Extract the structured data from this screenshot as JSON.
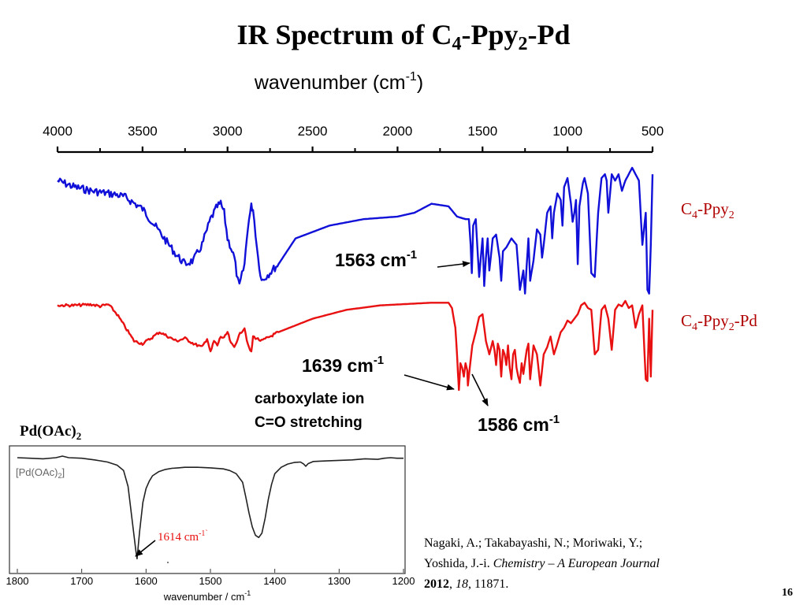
{
  "slide": {
    "title": "IR Spectrum of C",
    "title_sub1": "4",
    "title_mid": "-Ppy",
    "title_sub2": "2",
    "title_end": "-Pd",
    "page_number": "16"
  },
  "citation": {
    "authors": "Nagaki, A.; Takabayashi, N.; Moriwaki, Y.;",
    "authors2": "Yoshida, J.-i.",
    "journal": "Chemistry – A European Journal",
    "year": "2012",
    "volume": "18",
    "pages": "11871."
  },
  "colors": {
    "series1": "#1010d8",
    "series2": "#e81010",
    "label": "#b00000",
    "inset_line": "#222222",
    "inset_peak_label": "#e81010"
  },
  "chart_data": [
    {
      "type": "line",
      "title": "IR Spectrum of C4-Ppy2-Pd",
      "xlabel": "wavenumber (cm",
      "xlabel_sup": "-1",
      "xlabel_end": ")",
      "xlim": [
        4000,
        500
      ],
      "xticks": [
        "4000",
        "3500",
        "3000",
        "2500",
        "2000",
        "1500",
        "1000",
        "500"
      ],
      "series": [
        {
          "name": "C4-Ppy2",
          "name_parts": [
            "C",
            "4",
            "-Ppy",
            "2"
          ],
          "x": [
            4000,
            3900,
            3800,
            3700,
            3650,
            3600,
            3500,
            3400,
            3300,
            3250,
            3200,
            3150,
            3100,
            3060,
            3040,
            3020,
            3000,
            2980,
            2960,
            2940,
            2930,
            2900,
            2880,
            2860,
            2850,
            2820,
            2800,
            2700,
            2600,
            2400,
            2200,
            2000,
            1900,
            1800,
            1700,
            1650,
            1600,
            1580,
            1570,
            1563,
            1555,
            1540,
            1520,
            1500,
            1490,
            1480,
            1470,
            1460,
            1440,
            1420,
            1400,
            1390,
            1380,
            1360,
            1330,
            1300,
            1280,
            1260,
            1250,
            1240,
            1230,
            1220,
            1200,
            1180,
            1160,
            1150,
            1140,
            1120,
            1100,
            1090,
            1080,
            1060,
            1040,
            1030,
            1020,
            1000,
            980,
            970,
            960,
            950,
            940,
            930,
            910,
            900,
            880,
            860,
            840,
            820,
            800,
            780,
            770,
            760,
            750,
            740,
            720,
            700,
            680,
            660,
            640,
            620,
            600,
            580,
            560,
            540,
            530,
            520,
            510,
            500
          ],
          "y": [
            0.1,
            0.15,
            0.18,
            0.2,
            0.21,
            0.23,
            0.32,
            0.5,
            0.68,
            0.75,
            0.72,
            0.6,
            0.4,
            0.3,
            0.28,
            0.35,
            0.55,
            0.62,
            0.7,
            0.88,
            0.92,
            0.75,
            0.45,
            0.3,
            0.32,
            0.7,
            0.88,
            0.75,
            0.55,
            0.45,
            0.4,
            0.38,
            0.35,
            0.28,
            0.3,
            0.38,
            0.4,
            0.4,
            0.6,
            0.82,
            0.45,
            0.4,
            0.85,
            0.55,
            0.92,
            0.7,
            0.55,
            0.8,
            0.55,
            0.52,
            0.7,
            0.88,
            0.65,
            0.62,
            0.55,
            0.6,
            0.95,
            0.8,
            0.98,
            0.75,
            0.55,
            0.88,
            0.72,
            0.48,
            0.52,
            0.7,
            0.6,
            0.35,
            0.3,
            0.55,
            0.35,
            0.2,
            0.25,
            0.45,
            0.15,
            0.08,
            0.28,
            0.42,
            0.35,
            0.25,
            0.75,
            0.3,
            0.12,
            0.08,
            0.2,
            0.82,
            0.85,
            0.35,
            0.08,
            0.05,
            0.1,
            0.35,
            0.2,
            0.05,
            0.1,
            0.05,
            0.18,
            0.1,
            0.05,
            0.0,
            0.05,
            0.1,
            0.6,
            0.35,
            0.95,
            0.98,
            0.6,
            0.05
          ]
        },
        {
          "name": "C4-Ppy2-Pd",
          "name_parts": [
            "C",
            "4",
            "-Ppy",
            "2",
            "-Pd"
          ],
          "x": [
            4000,
            3900,
            3800,
            3750,
            3700,
            3650,
            3600,
            3550,
            3500,
            3450,
            3400,
            3350,
            3300,
            3250,
            3200,
            3150,
            3120,
            3100,
            3080,
            3060,
            3040,
            3020,
            3000,
            2980,
            2960,
            2940,
            2920,
            2900,
            2880,
            2860,
            2850,
            2800,
            2700,
            2500,
            2300,
            2100,
            2000,
            1900,
            1800,
            1700,
            1680,
            1660,
            1650,
            1645,
            1639,
            1630,
            1620,
            1610,
            1600,
            1590,
            1586,
            1575,
            1560,
            1540,
            1520,
            1500,
            1480,
            1460,
            1440,
            1430,
            1420,
            1410,
            1400,
            1390,
            1380,
            1370,
            1360,
            1350,
            1340,
            1330,
            1320,
            1310,
            1300,
            1290,
            1280,
            1270,
            1260,
            1240,
            1230,
            1220,
            1200,
            1180,
            1160,
            1140,
            1120,
            1100,
            1080,
            1060,
            1040,
            1020,
            1000,
            980,
            960,
            940,
            920,
            900,
            880,
            860,
            840,
            820,
            800,
            780,
            760,
            740,
            720,
            700,
            680,
            660,
            640,
            620,
            600,
            580,
            560,
            540,
            530,
            520,
            510,
            500
          ],
          "y": [
            0.05,
            0.05,
            0.04,
            0.06,
            0.04,
            0.15,
            0.3,
            0.45,
            0.48,
            0.42,
            0.35,
            0.4,
            0.45,
            0.42,
            0.48,
            0.52,
            0.42,
            0.58,
            0.45,
            0.5,
            0.4,
            0.42,
            0.35,
            0.48,
            0.52,
            0.42,
            0.35,
            0.3,
            0.5,
            0.58,
            0.4,
            0.45,
            0.35,
            0.2,
            0.1,
            0.05,
            0.04,
            0.03,
            0.02,
            0.02,
            0.08,
            0.3,
            0.6,
            0.8,
            1.0,
            0.7,
            0.75,
            0.85,
            0.7,
            0.78,
            0.95,
            0.75,
            0.5,
            0.35,
            0.18,
            0.15,
            0.45,
            0.6,
            0.45,
            0.55,
            0.72,
            0.48,
            0.55,
            0.85,
            0.55,
            0.6,
            0.72,
            0.5,
            0.75,
            0.88,
            0.6,
            0.55,
            0.75,
            0.85,
            0.92,
            0.7,
            0.82,
            0.55,
            0.48,
            0.88,
            0.5,
            0.6,
            0.95,
            0.6,
            0.52,
            0.4,
            0.6,
            0.48,
            0.35,
            0.3,
            0.22,
            0.25,
            0.2,
            0.15,
            0.05,
            0.02,
            0.08,
            0.1,
            0.6,
            0.55,
            0.1,
            0.05,
            0.2,
            0.55,
            0.1,
            0.04,
            0.06,
            0.0,
            0.08,
            0.05,
            0.3,
            0.15,
            0.05,
            0.88,
            0.9,
            0.2,
            0.85,
            0.1
          ]
        }
      ],
      "annotations": [
        {
          "text": "1563 cm",
          "sup": "-1",
          "x": 1563
        },
        {
          "text": "1639 cm",
          "sup": "-1",
          "x": 1639
        },
        {
          "text": "1586 cm",
          "sup": "-1",
          "x": 1586
        },
        {
          "text": "carboxylate ion",
          "text2": "C=O stretching"
        }
      ]
    },
    {
      "type": "line",
      "title": "Pd(OAc)",
      "title_sub": "2",
      "legend": "[Pd(OAc)",
      "legend_sub": "2",
      "legend_end": "]",
      "xlabel": "wavenumber / cm",
      "xlabel_sup": "-1",
      "xlim": [
        1800,
        1200
      ],
      "xticks": [
        "1800",
        "1700",
        "1600",
        "1500",
        "1400",
        "1300",
        "1200"
      ],
      "series": [
        {
          "name": "[Pd(OAc)2]",
          "x": [
            1800,
            1780,
            1760,
            1740,
            1730,
            1720,
            1700,
            1680,
            1660,
            1645,
            1635,
            1628,
            1622,
            1616,
            1614,
            1610,
            1605,
            1600,
            1595,
            1590,
            1580,
            1570,
            1560,
            1550,
            1540,
            1520,
            1500,
            1480,
            1470,
            1460,
            1450,
            1445,
            1440,
            1435,
            1430,
            1425,
            1420,
            1415,
            1410,
            1405,
            1400,
            1390,
            1380,
            1370,
            1360,
            1355,
            1352,
            1348,
            1340,
            1320,
            1300,
            1280,
            1260,
            1240,
            1230,
            1220,
            1210,
            1200
          ],
          "y": [
            0.97,
            0.965,
            0.96,
            0.97,
            0.985,
            0.97,
            0.965,
            0.95,
            0.93,
            0.9,
            0.85,
            0.7,
            0.4,
            0.1,
            0.02,
            0.28,
            0.55,
            0.68,
            0.75,
            0.8,
            0.84,
            0.86,
            0.87,
            0.875,
            0.88,
            0.88,
            0.875,
            0.865,
            0.85,
            0.82,
            0.74,
            0.6,
            0.45,
            0.32,
            0.24,
            0.22,
            0.26,
            0.4,
            0.58,
            0.72,
            0.82,
            0.88,
            0.91,
            0.925,
            0.93,
            0.91,
            0.89,
            0.915,
            0.935,
            0.94,
            0.945,
            0.95,
            0.96,
            0.955,
            0.965,
            0.97,
            0.965,
            0.965
          ]
        }
      ],
      "annotations": [
        {
          "text": "1614 cm",
          "sup": "-1`",
          "x": 1614
        }
      ]
    }
  ]
}
